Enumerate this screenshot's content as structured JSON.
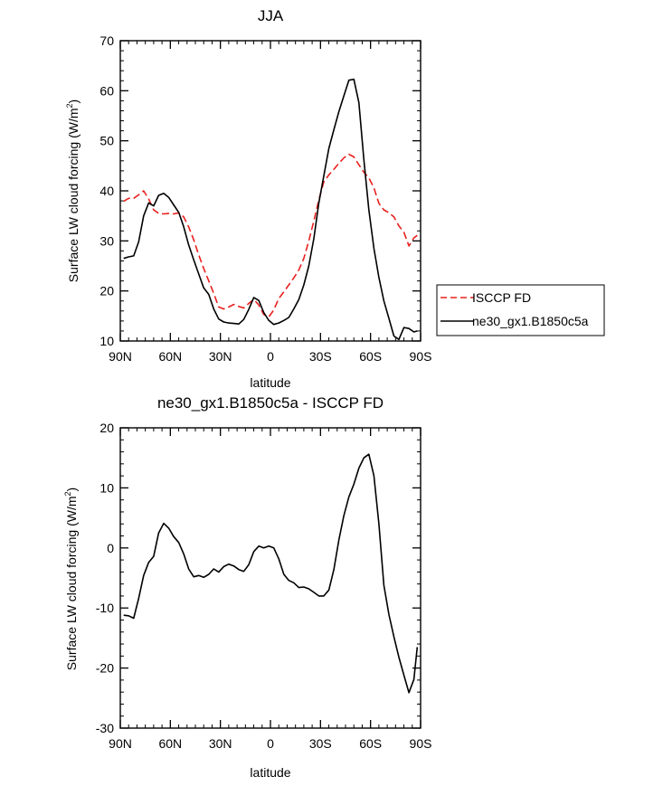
{
  "chart_data": [
    {
      "type": "line",
      "title": "JJA",
      "xlabel": "latitude",
      "ylabel_main": "Surface LW cloud forcing (W/m",
      "ylabel_sup": "2",
      "ylabel_close": ")",
      "xlim": [
        90,
        -90
      ],
      "ylim": [
        10,
        70
      ],
      "xticks": [
        90,
        60,
        30,
        0,
        -30,
        -60,
        -90
      ],
      "xtick_labels": [
        "90N",
        "60N",
        "30N",
        "0",
        "30S",
        "60S",
        "90S"
      ],
      "yticks": [
        10,
        20,
        30,
        40,
        50,
        60,
        70
      ],
      "ytick_labels": [
        "10",
        "20",
        "30",
        "40",
        "50",
        "60",
        "70"
      ],
      "legend": {
        "position": "right",
        "entries": [
          "ISCCP FD",
          "ne30_gx1.B1850c5a"
        ]
      },
      "series": [
        {
          "name": "ISCCP FD",
          "color": "#e8211f",
          "dash": "dashed",
          "x": [
            88,
            85,
            82,
            79,
            76,
            73,
            70,
            67,
            64,
            61,
            58,
            55,
            52,
            49,
            46,
            43,
            40,
            37,
            34,
            31,
            28,
            25,
            22,
            19,
            16,
            13,
            10,
            7,
            4,
            1,
            -2,
            -5,
            -8,
            -11,
            -14,
            -17,
            -20,
            -23,
            -26,
            -29,
            -32,
            -35,
            -38,
            -41,
            -44,
            -47,
            -50,
            -53,
            -56,
            -59,
            -62,
            -65,
            -68,
            -71,
            -74,
            -77,
            -80,
            -83,
            -86,
            -88
          ],
          "y": [
            37.9,
            38.5,
            38.5,
            39.2,
            40.0,
            38.4,
            36.2,
            35.5,
            35.4,
            35.5,
            35.4,
            35.6,
            34.8,
            32.8,
            30.2,
            27.2,
            24.5,
            22.0,
            19.5,
            16.8,
            16.4,
            16.8,
            17.3,
            16.9,
            16.6,
            17.5,
            18.3,
            17.2,
            15.3,
            14.8,
            16.2,
            18.5,
            19.8,
            21.2,
            22.6,
            24.2,
            26.5,
            30.0,
            34.0,
            38.2,
            41.8,
            43.2,
            44.3,
            45.5,
            46.6,
            47.3,
            46.8,
            45.2,
            43.7,
            42.6,
            40.6,
            37.5,
            36.2,
            35.6,
            34.8,
            33.0,
            31.7,
            29.0,
            30.6,
            31.1
          ]
        },
        {
          "name": "ne30_gx1.B1850c5a",
          "color": "#000000",
          "dash": "solid",
          "x": [
            88,
            85,
            82,
            79,
            76,
            73,
            70,
            67,
            64,
            61,
            58,
            55,
            52,
            49,
            46,
            43,
            40,
            37,
            34,
            31,
            28,
            25,
            22,
            19,
            16,
            13,
            10,
            7,
            4,
            1,
            -2,
            -5,
            -8,
            -11,
            -14,
            -17,
            -20,
            -23,
            -26,
            -29,
            -32,
            -35,
            -38,
            -41,
            -44,
            -47,
            -50,
            -53,
            -56,
            -59,
            -62,
            -65,
            -68,
            -71,
            -74,
            -77,
            -80,
            -83,
            -86,
            -88
          ],
          "y": [
            26.5,
            26.8,
            27.0,
            29.8,
            35.0,
            37.6,
            37.0,
            39.1,
            39.5,
            38.7,
            37.2,
            35.7,
            32.8,
            29.2,
            26.2,
            23.4,
            20.6,
            19.3,
            16.4,
            14.4,
            13.8,
            13.6,
            13.5,
            13.4,
            14.3,
            16.3,
            18.7,
            18.1,
            15.7,
            14.1,
            13.3,
            13.6,
            14.1,
            14.7,
            16.4,
            18.3,
            21.2,
            25.0,
            30.5,
            37.6,
            43.0,
            48.5,
            52.2,
            55.8,
            59.0,
            62.1,
            62.3,
            57.6,
            46.2,
            36.2,
            28.5,
            22.7,
            18.0,
            14.5,
            11.0,
            10.3,
            12.7,
            12.5,
            11.8,
            12.0
          ]
        }
      ]
    },
    {
      "type": "line",
      "title": "ne30_gx1.B1850c5a - ISCCP FD",
      "xlabel": "latitude",
      "ylabel_main": "Surface LW cloud forcing (W/m",
      "ylabel_sup": "2",
      "ylabel_close": ")",
      "xlim": [
        90,
        -90
      ],
      "ylim": [
        -30,
        20
      ],
      "xticks": [
        90,
        60,
        30,
        0,
        -30,
        -60,
        -90
      ],
      "xtick_labels": [
        "90N",
        "60N",
        "30N",
        "0",
        "30S",
        "60S",
        "90S"
      ],
      "yticks": [
        -30,
        -20,
        -10,
        0,
        10,
        20
      ],
      "ytick_labels": [
        "-30",
        "-20",
        "-10",
        "0",
        "10",
        "20"
      ],
      "series": [
        {
          "name": "ne30_gx1.B1850c5a - ISCCP FD",
          "color": "#000000",
          "dash": "solid",
          "x": [
            88,
            85,
            82,
            79,
            76,
            73,
            70,
            67,
            64,
            61,
            58,
            55,
            52,
            49,
            46,
            43,
            40,
            37,
            34,
            31,
            28,
            25,
            22,
            19,
            16,
            13,
            10,
            7,
            4,
            1,
            -2,
            -5,
            -8,
            -11,
            -14,
            -17,
            -20,
            -23,
            -26,
            -29,
            -32,
            -35,
            -38,
            -41,
            -44,
            -47,
            -50,
            -53,
            -56,
            -59,
            -62,
            -65,
            -68,
            -71,
            -74,
            -77,
            -80,
            -83,
            -86,
            -88
          ],
          "y": [
            -11.2,
            -11.3,
            -11.7,
            -8.4,
            -4.6,
            -2.4,
            -1.4,
            2.5,
            4.1,
            3.3,
            1.9,
            0.9,
            -1.0,
            -3.5,
            -4.8,
            -4.6,
            -4.9,
            -4.4,
            -3.5,
            -4.0,
            -3.1,
            -2.7,
            -3.0,
            -3.6,
            -3.9,
            -2.8,
            -0.6,
            0.3,
            0.0,
            0.3,
            0.0,
            -1.8,
            -4.4,
            -5.4,
            -5.8,
            -6.6,
            -6.5,
            -6.8,
            -7.4,
            -8.0,
            -8.0,
            -7.0,
            -3.6,
            1.3,
            5.4,
            8.5,
            10.6,
            13.3,
            15.0,
            15.6,
            12.0,
            4.0,
            -6.2,
            -11.1,
            -14.8,
            -18.2,
            -21.2,
            -24.1,
            -21.9,
            -16.5
          ]
        }
      ]
    }
  ]
}
